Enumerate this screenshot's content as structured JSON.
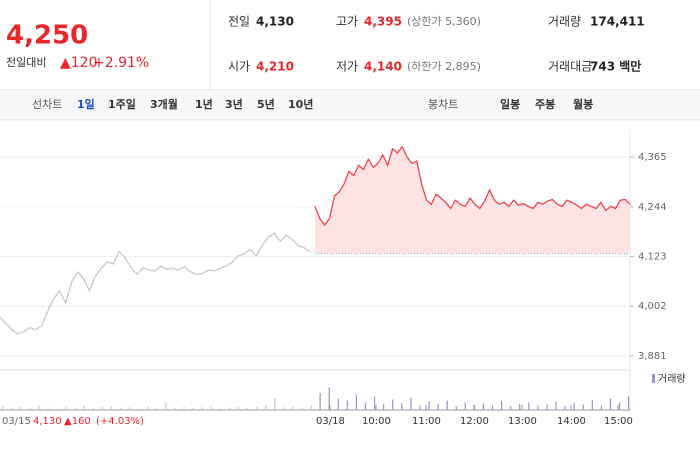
{
  "header": {
    "price": "4,250",
    "change_label": "전일대비",
    "change": "▲120",
    "change_pct": "+2.91%",
    "stats": [
      [
        {
          "label": "전일",
          "value": "4,130"
        },
        {
          "label": "고가",
          "value": "4,395",
          "note": "(상한가 5,360)"
        },
        {
          "label": "거래량",
          "value": "174,411"
        }
      ],
      [
        {
          "label": "시가",
          "value": "4,210"
        },
        {
          "label": "저가",
          "value": "4,140",
          "note": "(하한가 2,895)"
        },
        {
          "label": "거래대금",
          "value": "743 백만"
        }
      ]
    ]
  },
  "tabs": {
    "line_label": "선차트",
    "line": [
      "1일",
      "1주일",
      "3개월",
      "1년",
      "3년",
      "5년",
      "10년"
    ],
    "candle_label": "봉차트",
    "candle": [
      "일봉",
      "주봉",
      "월봉"
    ]
  },
  "chart_data": {
    "type": "line",
    "ylim": [
      3840,
      4420
    ],
    "yticks": [
      {
        "value": 4365,
        "label": "4,365"
      },
      {
        "value": 4244,
        "label": "4,244"
      },
      {
        "value": 4123,
        "label": "4,123"
      },
      {
        "value": 4002,
        "label": "4,002"
      },
      {
        "value": 3881,
        "label": "3,881"
      }
    ],
    "baseline": 4130,
    "x_labels": [
      "03/15",
      "03/18",
      "10:00",
      "11:00",
      "12:00",
      "13:00",
      "14:00",
      "15:00"
    ],
    "series": [
      {
        "color": "#c8c8c8",
        "values": [
          3975,
          3960,
          3945,
          3935,
          3940,
          3950,
          3945,
          3955,
          3990,
          4020,
          4040,
          4010,
          4060,
          4085,
          4070,
          4040,
          4075,
          4095,
          4110,
          4105,
          4135,
          4120,
          4095,
          4080,
          4095,
          4090,
          4088,
          4100,
          4092,
          4095,
          4090,
          4098,
          4085,
          4080,
          4082,
          4090,
          4088,
          4095,
          4100,
          4110,
          4125,
          4130,
          4140,
          4125,
          4150,
          4170,
          4180,
          4160,
          4175,
          4165,
          4150,
          4145,
          4135
        ]
      },
      {
        "color": "#f0454a",
        "values": [
          4245,
          4215,
          4200,
          4215,
          4270,
          4280,
          4300,
          4330,
          4320,
          4345,
          4335,
          4360,
          4340,
          4350,
          4370,
          4345,
          4385,
          4375,
          4390,
          4365,
          4350,
          4355,
          4300,
          4260,
          4250,
          4275,
          4265,
          4255,
          4240,
          4260,
          4250,
          4245,
          4265,
          4250,
          4240,
          4258,
          4285,
          4260,
          4250,
          4255,
          4245,
          4260,
          4248,
          4252,
          4245,
          4240,
          4255,
          4250,
          4258,
          4262,
          4250,
          4245,
          4260,
          4255,
          4248,
          4240,
          4250,
          4245,
          4240,
          4255,
          4235,
          4245,
          4240,
          4260,
          4262,
          4250
        ]
      }
    ],
    "volume": {
      "name": "거래량",
      "color": "#9b8fd0",
      "vlim": [
        0,
        100
      ],
      "values": [
        10,
        6,
        8,
        5,
        12,
        7,
        4,
        9,
        6,
        14,
        5,
        8,
        10,
        6,
        7,
        4,
        9,
        5,
        22,
        6,
        8,
        5,
        7,
        10,
        4,
        6,
        9,
        5,
        8,
        12,
        30,
        7,
        9,
        6,
        12,
        45,
        60,
        30,
        25,
        40,
        20,
        35,
        15,
        28,
        18,
        32,
        12,
        22,
        16,
        25,
        10,
        20,
        14,
        18,
        12,
        24,
        10,
        16,
        20,
        12,
        15,
        22,
        10,
        18,
        14,
        26,
        12,
        30,
        20,
        35
      ]
    },
    "footer": {
      "date": "03/15",
      "close": "4,130",
      "change": "▲160",
      "change_pct": "(+4.03%)"
    }
  }
}
